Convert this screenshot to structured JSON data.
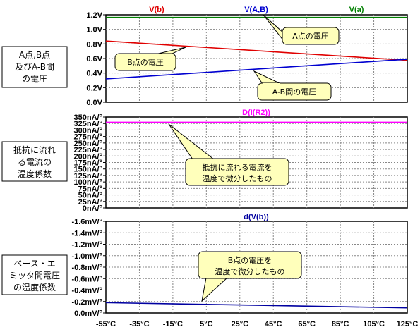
{
  "x_axis": {
    "ticks": [
      "-55°C",
      "-35°C",
      "-15°C",
      "5°C",
      "25°C",
      "45°C",
      "65°C",
      "85°C",
      "105°C",
      "125°C"
    ],
    "values": [
      -55,
      -35,
      -15,
      5,
      25,
      45,
      65,
      85,
      105,
      125
    ]
  },
  "colors": {
    "v_b": "#e00000",
    "v_ab": "#0000d0",
    "v_a": "#008000",
    "d_i_r2": "#ff00ff",
    "d_v_b": "#0000a0",
    "note_fill": "#ffffbb"
  },
  "side_labels": {
    "panel1": [
      "A点,B点",
      "及びA-B間",
      "の電圧"
    ],
    "panel2": [
      "抵抗に流れ",
      "る電流の",
      "温度係数"
    ],
    "panel3": [
      "ベース・エ",
      "ミッタ間電圧",
      "の温度係数"
    ]
  },
  "notes": {
    "a_voltage": "A点の電圧",
    "b_voltage": "B点の電圧",
    "ab_voltage": "A-B間の電圧",
    "current_tc": [
      "抵抗に流れる電流を",
      "温度で微分したもの"
    ],
    "b_tc": [
      "B点の電圧を",
      "温度で微分したもの"
    ]
  },
  "chart_data": [
    {
      "type": "line",
      "x": [
        -55,
        125
      ],
      "ylim": [
        0,
        1.2
      ],
      "yticks": [
        "0.0V",
        "0.2V",
        "0.4V",
        "0.6V",
        "0.8V",
        "1.0V",
        "1.2V"
      ],
      "series": [
        {
          "name": "V(b)",
          "values": [
            0.84,
            0.575
          ]
        },
        {
          "name": "V(A,B)",
          "values": [
            0.32,
            0.59
          ]
        },
        {
          "name": "V(a)",
          "values": [
            1.165,
            1.165
          ]
        }
      ]
    },
    {
      "type": "line",
      "x": [
        -55,
        125
      ],
      "ylim": [
        0,
        350
      ],
      "yticks": [
        "0nA/°",
        "25nA/°",
        "50nA/°",
        "75nA/°",
        "100nA/°",
        "125nA/°",
        "150nA/°",
        "175nA/°",
        "200nA/°",
        "225nA/°",
        "250nA/°",
        "275nA/°",
        "300nA/°",
        "325nA/°",
        "350nA/°"
      ],
      "series": [
        {
          "name": "D(I(R2))",
          "values": [
            330,
            330
          ]
        }
      ]
    },
    {
      "type": "line",
      "x": [
        -55,
        125
      ],
      "ylim": [
        -1.6,
        0
      ],
      "yticks": [
        "0.0mV/°",
        "-0.2mV/°",
        "-0.4mV/°",
        "-0.6mV/°",
        "-0.8mV/°",
        "-1.0mV/°",
        "-1.2mV/°",
        "-1.4mV/°",
        "-1.6mV/°"
      ],
      "series": [
        {
          "name": "d(V(b))",
          "values": [
            -1.42,
            -1.51
          ]
        }
      ]
    }
  ]
}
